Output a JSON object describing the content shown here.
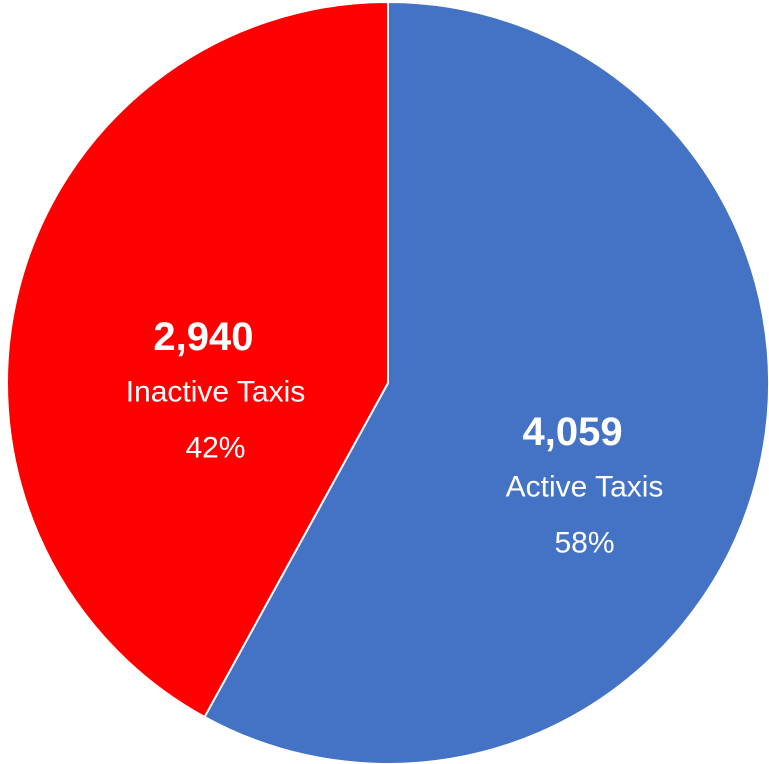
{
  "chart_data": {
    "type": "pie",
    "categories": [
      "Active Taxis",
      "Inactive Taxis"
    ],
    "values": [
      4059,
      2940
    ],
    "value_labels": [
      "4,059",
      "2,940"
    ],
    "percent_labels": [
      "58%",
      "42%"
    ],
    "colors": [
      "#4472c4",
      "#ff0000"
    ]
  }
}
